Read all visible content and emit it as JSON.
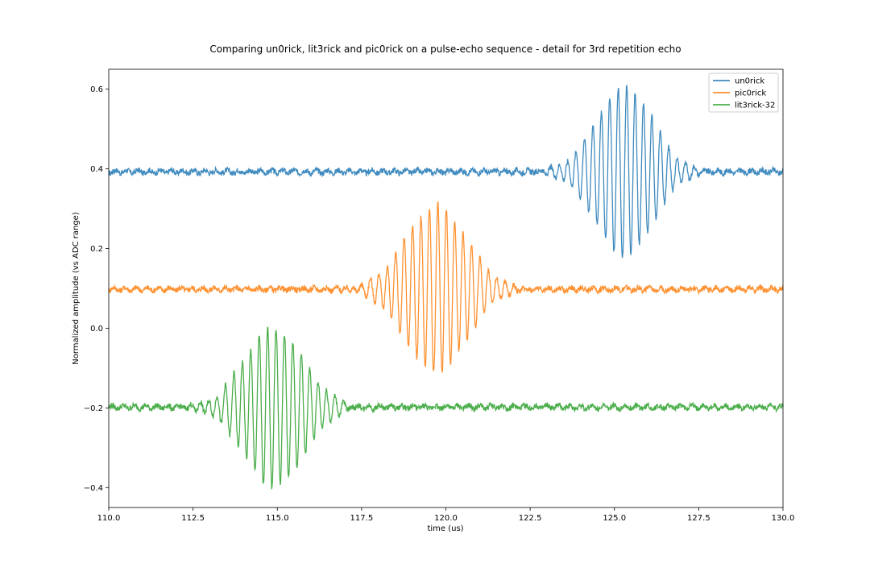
{
  "chart_data": {
    "type": "line",
    "title": "Comparing un0rick, lit3rick and pic0rick on a pulse-echo sequence - detail for 3rd repetition echo",
    "xlabel": "time (us)",
    "ylabel": "Normalized amplitude (vs ADC range)",
    "xlim": [
      110.0,
      130.0
    ],
    "ylim": [
      -0.45,
      0.65
    ],
    "xticks": [
      110.0,
      112.5,
      115.0,
      117.5,
      120.0,
      122.5,
      125.0,
      127.5,
      130.0
    ],
    "xtick_labels": [
      "110.0",
      "112.5",
      "115.0",
      "117.5",
      "120.0",
      "122.5",
      "125.0",
      "127.5",
      "130.0"
    ],
    "yticks": [
      -0.4,
      -0.2,
      0.0,
      0.2,
      0.4,
      0.6
    ],
    "ytick_labels": [
      "−0.4",
      "−0.2",
      "0.0",
      "0.2",
      "0.4",
      "0.6"
    ],
    "grid": false,
    "legend_position": "top-right",
    "series": [
      {
        "name": "un0rick",
        "color": "#1f77b4",
        "baseline": 0.393,
        "echo": {
          "center": 125.3,
          "width": 1.2,
          "amplitude": 0.215,
          "frequency": 4.0
        },
        "x": [
          110.0,
          111.0,
          112.0,
          113.0,
          114.0,
          115.0,
          116.0,
          117.0,
          118.0,
          119.0,
          120.0,
          121.0,
          122.0,
          122.5,
          123.0,
          123.5,
          124.0,
          124.5,
          125.0,
          125.3,
          125.5,
          126.0,
          126.5,
          127.0,
          127.5,
          128.0,
          129.0,
          130.0
        ],
        "y": [
          0.39,
          0.395,
          0.392,
          0.393,
          0.39,
          0.396,
          0.394,
          0.391,
          0.393,
          0.392,
          0.394,
          0.393,
          0.395,
          0.38,
          0.43,
          0.34,
          0.45,
          0.31,
          0.58,
          0.2,
          0.61,
          0.3,
          0.47,
          0.33,
          0.43,
          0.37,
          0.395,
          0.4
        ]
      },
      {
        "name": "pic0rick",
        "color": "#ff7f0e",
        "baseline": 0.098,
        "echo": {
          "center": 119.7,
          "width": 1.3,
          "amplitude": 0.21,
          "frequency": 4.0
        },
        "x": [
          110.0,
          111.0,
          112.0,
          113.0,
          114.0,
          115.0,
          116.0,
          117.0,
          117.5,
          118.0,
          118.5,
          119.0,
          119.4,
          119.7,
          120.0,
          120.5,
          121.0,
          121.5,
          122.0,
          122.5,
          123.0,
          124.0,
          125.0,
          126.0,
          127.0,
          128.0,
          129.0,
          130.0
        ],
        "y": [
          0.1,
          0.097,
          0.1,
          0.096,
          0.099,
          0.1,
          0.098,
          0.097,
          0.13,
          0.06,
          0.13,
          0.2,
          0.32,
          -0.1,
          0.28,
          -0.0,
          0.17,
          0.03,
          0.16,
          0.06,
          0.1,
          0.096,
          0.1,
          0.098,
          0.1,
          0.097,
          0.099,
          0.1
        ]
      },
      {
        "name": "lit3rick-32",
        "color": "#2ca02c",
        "baseline": -0.198,
        "echo": {
          "center": 114.9,
          "width": 1.25,
          "amplitude": 0.2,
          "frequency": 4.0
        },
        "x": [
          110.0,
          111.0,
          112.0,
          112.5,
          113.0,
          113.5,
          114.0,
          114.5,
          114.8,
          115.0,
          115.3,
          115.5,
          116.0,
          116.5,
          117.0,
          118.0,
          119.0,
          120.0,
          121.0,
          122.0,
          123.0,
          124.0,
          125.0,
          126.0,
          127.0,
          128.0,
          129.0,
          130.0
        ],
        "y": [
          -0.2,
          -0.195,
          -0.2,
          -0.19,
          -0.13,
          -0.27,
          -0.08,
          -0.35,
          -0.02,
          -0.39,
          -0.03,
          -0.3,
          -0.13,
          -0.25,
          -0.15,
          -0.2,
          -0.198,
          -0.2,
          -0.197,
          -0.2,
          -0.199,
          -0.2,
          -0.198,
          -0.2,
          -0.197,
          -0.2,
          -0.199,
          -0.185
        ]
      }
    ]
  }
}
